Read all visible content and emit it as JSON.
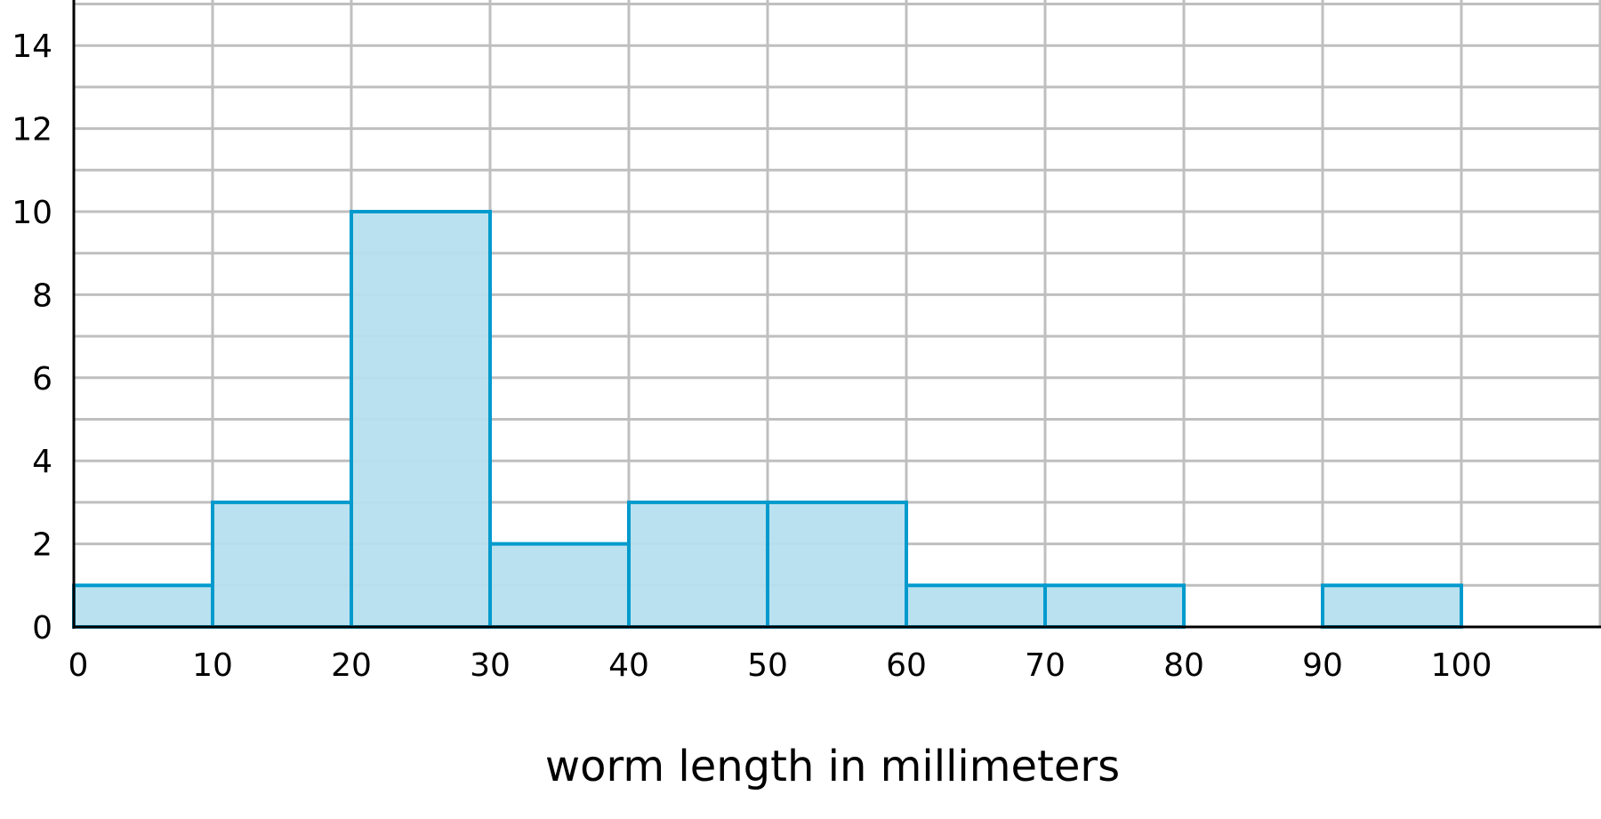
{
  "chart_data": {
    "type": "bar",
    "subtype": "histogram",
    "title": "",
    "xlabel": "worm length in millimeters",
    "ylabel": "",
    "bins": [
      [
        0,
        10
      ],
      [
        10,
        20
      ],
      [
        20,
        30
      ],
      [
        30,
        40
      ],
      [
        40,
        50
      ],
      [
        50,
        60
      ],
      [
        60,
        70
      ],
      [
        70,
        80
      ],
      [
        80,
        90
      ],
      [
        90,
        100
      ]
    ],
    "values": [
      1,
      3,
      10,
      2,
      3,
      3,
      1,
      1,
      0,
      1
    ],
    "xlim": [
      0,
      110
    ],
    "ylim": [
      0,
      15
    ],
    "xticks": [
      0,
      10,
      20,
      30,
      40,
      50,
      60,
      70,
      80,
      90,
      100
    ],
    "yticks": [
      0,
      2,
      4,
      6,
      8,
      10,
      12,
      14
    ],
    "grid": true,
    "colors": {
      "fill": "#b6dfee",
      "stroke": "#009acd",
      "grid": "#bfbfbf",
      "axis": "#000000"
    }
  }
}
